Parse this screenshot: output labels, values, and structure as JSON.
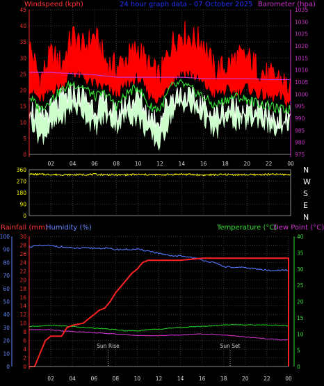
{
  "header": {
    "title": "24 hour graph data - 07 October 2025",
    "left_label": "Windspeed (kph)",
    "right_label": "Barometer (hpa)"
  },
  "labels": {
    "rainfall": "Rainfall (mm)",
    "humidity": "Humidity (%)",
    "temperature": "Temperature (°C)",
    "dewpoint": "Dew Point (°C)",
    "sunrise": "Sun Rise",
    "sunset": "Sun Set"
  },
  "compass": [
    "N",
    "W",
    "S",
    "E",
    "N"
  ],
  "colors": {
    "windspeed": "#ff0000",
    "gust": "#ffffff",
    "average": "#33dd33",
    "light_band": "#ccffcc",
    "barometer": "#cc33cc",
    "direction": "#ffff00",
    "rainfall": "#ff2222",
    "humidity": "#5577ff",
    "temperature": "#22cc22",
    "dewpoint": "#cc33cc",
    "left_axis": "#ff3333",
    "right_axis": "#cc33cc",
    "humidity_axis": "#6688ff",
    "temp_axis": "#33dd33",
    "grid": "#3a3a3a"
  },
  "chart_data": [
    {
      "type": "line",
      "panel": "wind",
      "x_label": "hour",
      "xlim": [
        0,
        24
      ],
      "xticks": [
        "02",
        "04",
        "06",
        "08",
        "10",
        "12",
        "14",
        "16",
        "18",
        "20",
        "22",
        "00"
      ],
      "ylim": [
        0,
        45
      ],
      "yticks": [
        0,
        5,
        10,
        15,
        20,
        25,
        30,
        35,
        40,
        45
      ],
      "y2lim": [
        975,
        1035
      ],
      "y2ticks": [
        975,
        980,
        985,
        990,
        995,
        1000,
        1005,
        1010,
        1015,
        1020,
        1025,
        1030,
        1035
      ],
      "series": [
        {
          "role": "gust_max",
          "x": [
            0,
            1,
            2,
            3,
            4,
            5,
            6,
            7,
            8,
            9,
            10,
            11,
            12,
            13,
            14,
            15,
            16,
            17,
            18,
            19,
            20,
            21,
            22,
            23,
            24
          ],
          "y": [
            34,
            23,
            31,
            28,
            37,
            33,
            37,
            29,
            27,
            30,
            33,
            27,
            24,
            34,
            38,
            36,
            35,
            26,
            27,
            30,
            30,
            27,
            24,
            24,
            20
          ]
        },
        {
          "role": "speed_upper",
          "x": [
            0,
            1,
            2,
            3,
            4,
            5,
            6,
            7,
            8,
            9,
            10,
            11,
            12,
            13,
            14,
            15,
            16,
            17,
            18,
            19,
            20,
            21,
            22,
            23,
            24
          ],
          "y": [
            21,
            17,
            20,
            22,
            26,
            24,
            22,
            21,
            19,
            22,
            24,
            19,
            17,
            23,
            26,
            25,
            22,
            19,
            20,
            20,
            21,
            19,
            18,
            18,
            16
          ]
        },
        {
          "role": "average",
          "x": [
            0,
            1,
            2,
            3,
            4,
            5,
            6,
            7,
            8,
            9,
            10,
            11,
            12,
            13,
            14,
            15,
            16,
            17,
            18,
            19,
            20,
            21,
            22,
            23,
            24
          ],
          "y": [
            18,
            14,
            17,
            20,
            22,
            21,
            18,
            19,
            15,
            19,
            21,
            15,
            14,
            21,
            22,
            20,
            18,
            15,
            17,
            18,
            17,
            16,
            15,
            14,
            14
          ]
        },
        {
          "role": "lull",
          "x": [
            0,
            1,
            2,
            3,
            4,
            5,
            6,
            7,
            8,
            9,
            10,
            11,
            12,
            13,
            14,
            15,
            16,
            17,
            18,
            19,
            20,
            21,
            22,
            23,
            24
          ],
          "y": [
            12,
            5,
            8,
            11,
            15,
            13,
            8,
            12,
            9,
            12,
            11,
            6,
            3,
            12,
            16,
            14,
            12,
            6,
            11,
            10,
            10,
            11,
            9,
            6,
            11
          ]
        },
        {
          "role": "barometer",
          "axis": "y2",
          "x": [
            0,
            2,
            4,
            6,
            8,
            10,
            12,
            14,
            16,
            18,
            20,
            22,
            24
          ],
          "y": [
            1009,
            1009,
            1008.5,
            1008,
            1007,
            1007,
            1007,
            1007,
            1006.5,
            1006.5,
            1006.5,
            1006,
            1006
          ]
        }
      ]
    },
    {
      "type": "line",
      "panel": "direction",
      "xlim": [
        0,
        24
      ],
      "ylim": [
        0,
        360
      ],
      "yticks": [
        0,
        90,
        180,
        270,
        360
      ],
      "series": [
        {
          "role": "direction",
          "x": [
            0,
            2,
            4,
            6,
            8,
            10,
            12,
            14,
            16,
            18,
            20,
            22,
            24
          ],
          "y": [
            325,
            322,
            320,
            323,
            319,
            322,
            320,
            325,
            318,
            322,
            320,
            323,
            322
          ]
        }
      ]
    },
    {
      "type": "line",
      "panel": "environment",
      "xlim": [
        0,
        24
      ],
      "xticks": [
        "02",
        "04",
        "06",
        "08",
        "10",
        "12",
        "14",
        "16",
        "18",
        "20",
        "22",
        "00"
      ],
      "ylim_rain": [
        0,
        30
      ],
      "yticks_rain": [
        0,
        2,
        4,
        6,
        8,
        10,
        12,
        14,
        16,
        18,
        20,
        22,
        24,
        26,
        28,
        30
      ],
      "ylim_humidity": [
        0,
        100
      ],
      "yticks_humidity": [
        0,
        10,
        20,
        30,
        40,
        50,
        60,
        70,
        80,
        90,
        100
      ],
      "ylim_temp": [
        0,
        40
      ],
      "yticks_temp": [
        0,
        5,
        10,
        15,
        20,
        25,
        30,
        35,
        40
      ],
      "sunrise_hour": 7.3,
      "sunset_hour": 18.6,
      "series": [
        {
          "role": "humidity",
          "axis": "humidity",
          "x": [
            0,
            1,
            2,
            3,
            4,
            5,
            6,
            7,
            8,
            9,
            10,
            11,
            12,
            13,
            14,
            15,
            16,
            17,
            18,
            19,
            20,
            21,
            22,
            23,
            24
          ],
          "y": [
            92,
            93,
            93,
            92,
            91,
            91,
            91,
            91,
            90,
            90,
            90,
            89,
            87,
            85,
            85,
            84,
            82,
            80,
            77,
            76,
            76,
            75,
            74,
            74,
            74
          ]
        },
        {
          "role": "rainfall",
          "axis": "rain",
          "x": [
            0,
            0.5,
            1,
            1.5,
            2,
            3,
            3.5,
            4,
            5,
            5.5,
            6,
            6.5,
            7,
            7.5,
            8,
            8.5,
            9,
            9.5,
            10,
            10.5,
            11,
            14,
            16,
            17,
            18,
            24,
            24.1
          ],
          "y": [
            0,
            0,
            3,
            6,
            7,
            7,
            9,
            9.5,
            10,
            11,
            12,
            13,
            13.5,
            15,
            17,
            18.5,
            20,
            21.5,
            22.5,
            24,
            24.5,
            24.5,
            25,
            25,
            25,
            25,
            0
          ]
        },
        {
          "role": "temperature",
          "axis": "temp",
          "x": [
            0,
            1,
            2,
            3,
            4,
            5,
            6,
            7,
            8,
            9,
            10,
            11,
            12,
            13,
            14,
            15,
            16,
            17,
            18,
            19,
            20,
            21,
            22,
            23,
            24
          ],
          "y": [
            12.3,
            12.5,
            12.8,
            12.5,
            12.3,
            12.0,
            11.8,
            11.6,
            11.3,
            11.0,
            11.0,
            11.3,
            11.5,
            11.8,
            12.0,
            12.2,
            12.4,
            12.5,
            12.8,
            12.9,
            12.8,
            12.8,
            12.8,
            12.7,
            12.5
          ]
        },
        {
          "role": "dewpoint",
          "axis": "temp",
          "x": [
            0,
            1,
            2,
            3,
            4,
            5,
            6,
            7,
            8,
            9,
            10,
            11,
            12,
            13,
            14,
            15,
            16,
            17,
            18,
            19,
            20,
            21,
            22,
            23,
            24
          ],
          "y": [
            11.3,
            11.4,
            11.3,
            11.0,
            10.8,
            10.6,
            10.4,
            10.2,
            10.0,
            9.8,
            9.6,
            9.5,
            9.5,
            9.6,
            9.7,
            9.9,
            10.0,
            9.9,
            9.7,
            9.4,
            9.1,
            8.8,
            8.5,
            8.3,
            8.2
          ]
        }
      ]
    }
  ]
}
